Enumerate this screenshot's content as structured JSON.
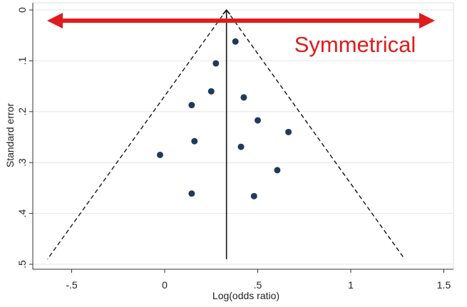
{
  "chart_data": {
    "type": "scatter",
    "xlabel": "Log(odds ratio)",
    "ylabel": "Standard error",
    "xlim": [
      -0.62,
      1.55
    ],
    "ylim": [
      0,
      0.5
    ],
    "y_inverted": true,
    "xticks": [
      -0.5,
      0,
      0.5,
      1,
      1.5
    ],
    "xtick_labels": [
      "-.5",
      "0",
      ".5",
      "1",
      "1.5"
    ],
    "yticks": [
      0,
      0.1,
      0.2,
      0.3,
      0.4,
      0.5
    ],
    "ytick_labels": [
      "0",
      ".1",
      ".2",
      ".3",
      ".4",
      ".5"
    ],
    "grid": "horizontal",
    "points": [
      {
        "x": 0.38,
        "y": 0.062
      },
      {
        "x": 0.275,
        "y": 0.105
      },
      {
        "x": 0.25,
        "y": 0.16
      },
      {
        "x": 0.425,
        "y": 0.172
      },
      {
        "x": 0.145,
        "y": 0.187
      },
      {
        "x": 0.5,
        "y": 0.217
      },
      {
        "x": 0.665,
        "y": 0.24
      },
      {
        "x": 0.16,
        "y": 0.258
      },
      {
        "x": 0.41,
        "y": 0.269
      },
      {
        "x": -0.025,
        "y": 0.285
      },
      {
        "x": 0.605,
        "y": 0.315
      },
      {
        "x": 0.145,
        "y": 0.361
      },
      {
        "x": 0.48,
        "y": 0.366
      }
    ],
    "pooled_estimate": 0.332,
    "funnel_limits": {
      "apex": [
        0.332,
        0
      ],
      "bottom_left": [
        -0.63,
        0.49
      ],
      "bottom_right": [
        1.29,
        0.49
      ]
    },
    "annotation": {
      "text": "Symmetrical",
      "arrow": "double-headed",
      "color": "#e01b1b"
    },
    "colors": {
      "points": "#1f3a5a",
      "lines": "#111111",
      "grid": "#e6e6e6",
      "arrow": "#e01b1b"
    }
  }
}
